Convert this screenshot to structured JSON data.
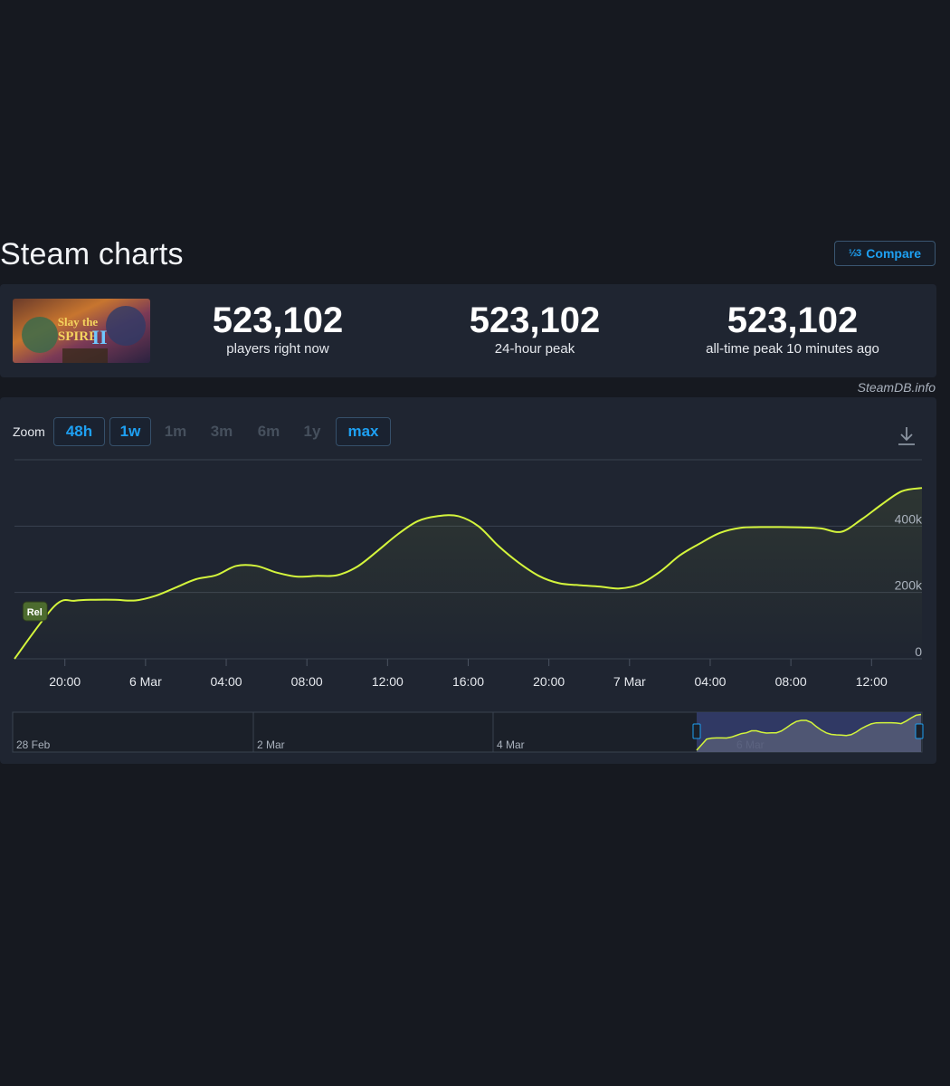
{
  "section": {
    "title": "Steam charts"
  },
  "compare": {
    "icon_text": "½3",
    "label": "Compare"
  },
  "game": {
    "cover_title_top": "Slay the",
    "cover_title_bottom": "SPIRE",
    "cover_numeral": "II"
  },
  "stats": [
    {
      "value": "523,102",
      "label": "players right now"
    },
    {
      "value": "523,102",
      "label": "24-hour peak"
    },
    {
      "value": "523,102",
      "label": "all-time peak 10 minutes ago"
    }
  ],
  "credit": "SteamDB.info",
  "zoom": {
    "label": "Zoom",
    "buttons": [
      {
        "label": "48h",
        "enabled": true
      },
      {
        "label": "1w",
        "enabled": true
      },
      {
        "label": "1m",
        "enabled": false
      },
      {
        "label": "3m",
        "enabled": false
      },
      {
        "label": "6m",
        "enabled": false
      },
      {
        "label": "1y",
        "enabled": false
      },
      {
        "label": "max",
        "enabled": true
      }
    ]
  },
  "download": {
    "icon": "download-icon"
  },
  "colors": {
    "line": "#d4f53c",
    "panel": "#1f2531",
    "accent": "#1ea0f2",
    "navigator_selection": "#343e6e"
  },
  "chart_data": {
    "type": "line",
    "x_tick_labels": [
      "20:00",
      "6 Mar",
      "04:00",
      "08:00",
      "12:00",
      "16:00",
      "20:00",
      "7 Mar",
      "04:00",
      "08:00",
      "12:00"
    ],
    "y_tick_labels": [
      "0",
      "200k",
      "400k"
    ],
    "ylim": [
      0,
      600000
    ],
    "x_hours_range": [
      17.5,
      62.5
    ],
    "marker": {
      "label": "Rel",
      "x_hours": 18.5
    },
    "series": [
      {
        "x_hours": [
          17.5,
          19.5,
          20.5,
          21.5,
          22.5,
          23.5,
          24.5,
          25.5,
          26.5,
          27.5,
          28.5,
          29.5,
          30.5,
          31.5,
          32.5,
          33.5,
          34.5,
          35.5,
          36.5,
          37.5,
          38.5,
          39.5,
          40.5,
          41.5,
          42.5,
          43.5,
          44.5,
          45.5,
          46.5,
          47.5,
          48.5,
          49.5,
          50.5,
          51.5,
          52.5,
          53.5,
          54.5,
          55.5,
          56.5,
          57.5,
          58.5,
          59.5,
          60.5,
          61.5,
          62.5
        ],
        "values": [
          0,
          160000,
          175000,
          178000,
          178000,
          176000,
          190000,
          215000,
          240000,
          252000,
          280000,
          280000,
          260000,
          248000,
          250000,
          252000,
          278000,
          325000,
          375000,
          415000,
          430000,
          430000,
          400000,
          340000,
          290000,
          250000,
          228000,
          222000,
          218000,
          212000,
          225000,
          262000,
          312000,
          348000,
          380000,
          395000,
          397000,
          397000,
          396000,
          393000,
          383000,
          420000,
          465000,
          505000,
          515000
        ]
      }
    ],
    "navigator": {
      "tick_labels": [
        "28 Feb",
        "2 Mar",
        "4 Mar",
        "6 Mar"
      ]
    }
  }
}
